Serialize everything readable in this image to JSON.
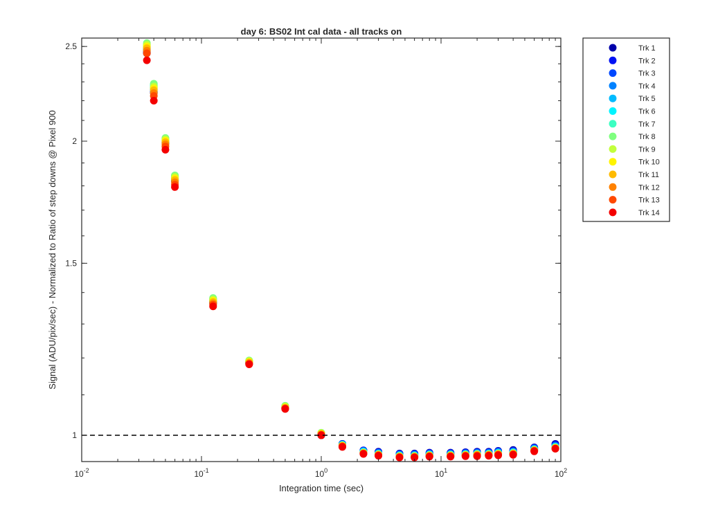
{
  "chart_data": {
    "type": "scatter",
    "title": "day 6: BS02   Int cal data - all tracks on",
    "xlabel": "Integration time (sec)",
    "ylabel": "Signal (ADU/pix/sec) - Normalized to Ratio of step downs @ Pixel 900",
    "x_scale": "log",
    "y_scale": "log",
    "xlim": [
      0.01,
      100
    ],
    "ylim": [
      0.94,
      2.55
    ],
    "x_ticks": [
      {
        "value": 0.01,
        "base": "10",
        "exp": "-2"
      },
      {
        "value": 0.1,
        "base": "10",
        "exp": "-1"
      },
      {
        "value": 1,
        "base": "10",
        "exp": "0"
      },
      {
        "value": 10,
        "base": "10",
        "exp": "1"
      },
      {
        "value": 100,
        "base": "10",
        "exp": "2"
      }
    ],
    "y_ticks": [
      {
        "value": 1,
        "label": "1"
      },
      {
        "value": 1.5,
        "label": "1.5"
      },
      {
        "value": 2,
        "label": "2"
      },
      {
        "value": 2.5,
        "label": "2.5"
      }
    ],
    "reference_line": {
      "y": 1,
      "style": "dashed",
      "color": "#000000"
    },
    "grid": false,
    "legend_position": "outside-right",
    "x": [
      0.035,
      0.04,
      0.05,
      0.06,
      0.125,
      0.25,
      0.5,
      1,
      1.5,
      2.25,
      3,
      4.5,
      6,
      8,
      12,
      16,
      20,
      25,
      30,
      40,
      60,
      90
    ],
    "series": [
      {
        "name": "Trk 1",
        "color": "#0000AA",
        "values": [
          2.46,
          2.24,
          1.99,
          1.82,
          1.365,
          1.185,
          1.065,
          1.0,
          0.98,
          0.965,
          0.962,
          0.958,
          0.958,
          0.96,
          0.96,
          0.961,
          0.962,
          0.962,
          0.964,
          0.966,
          0.972,
          0.98
        ]
      },
      {
        "name": "Trk 2",
        "color": "#0012F4",
        "values": [
          2.465,
          2.245,
          1.993,
          1.823,
          1.367,
          1.186,
          1.066,
          1.001,
          0.98,
          0.965,
          0.961,
          0.957,
          0.957,
          0.959,
          0.959,
          0.96,
          0.961,
          0.961,
          0.963,
          0.964,
          0.971,
          0.978
        ]
      },
      {
        "name": "Trk 3",
        "color": "#0048FF",
        "values": [
          2.47,
          2.25,
          1.996,
          1.826,
          1.369,
          1.187,
          1.067,
          1.002,
          0.979,
          0.964,
          0.96,
          0.956,
          0.956,
          0.958,
          0.958,
          0.959,
          0.96,
          0.96,
          0.962,
          0.963,
          0.97,
          0.976
        ]
      },
      {
        "name": "Trk 4",
        "color": "#0082FF",
        "values": [
          2.48,
          2.26,
          2.0,
          1.83,
          1.372,
          1.188,
          1.068,
          1.003,
          0.979,
          0.963,
          0.959,
          0.955,
          0.955,
          0.957,
          0.957,
          0.958,
          0.959,
          0.959,
          0.961,
          0.962,
          0.969,
          0.975
        ]
      },
      {
        "name": "Trk 5",
        "color": "#00BBFF",
        "values": [
          2.49,
          2.27,
          2.005,
          1.835,
          1.375,
          1.19,
          1.069,
          1.004,
          0.978,
          0.962,
          0.958,
          0.954,
          0.954,
          0.956,
          0.956,
          0.957,
          0.958,
          0.958,
          0.96,
          0.961,
          0.968,
          0.974
        ]
      },
      {
        "name": "Trk 6",
        "color": "#00F4FF",
        "values": [
          2.5,
          2.28,
          2.01,
          1.84,
          1.378,
          1.191,
          1.07,
          1.005,
          0.978,
          0.962,
          0.957,
          0.953,
          0.953,
          0.955,
          0.955,
          0.956,
          0.957,
          0.957,
          0.959,
          0.96,
          0.967,
          0.973
        ]
      },
      {
        "name": "Trk 7",
        "color": "#3CFFC2",
        "values": [
          2.51,
          2.285,
          2.013,
          1.843,
          1.38,
          1.192,
          1.071,
          1.005,
          0.977,
          0.961,
          0.957,
          0.953,
          0.953,
          0.955,
          0.955,
          0.956,
          0.957,
          0.957,
          0.958,
          0.96,
          0.967,
          0.972
        ]
      },
      {
        "name": "Trk 8",
        "color": "#7FFF7F",
        "values": [
          2.52,
          2.29,
          2.015,
          1.845,
          1.382,
          1.193,
          1.072,
          1.006,
          0.977,
          0.96,
          0.956,
          0.952,
          0.952,
          0.954,
          0.954,
          0.955,
          0.956,
          0.956,
          0.958,
          0.959,
          0.966,
          0.972
        ]
      },
      {
        "name": "Trk 9",
        "color": "#C2FF3C",
        "values": [
          2.51,
          2.275,
          2.008,
          1.838,
          1.377,
          1.191,
          1.07,
          1.005,
          0.976,
          0.96,
          0.956,
          0.952,
          0.952,
          0.954,
          0.954,
          0.955,
          0.956,
          0.956,
          0.957,
          0.958,
          0.966,
          0.971
        ]
      },
      {
        "name": "Trk 10",
        "color": "#FFF400",
        "values": [
          2.5,
          2.265,
          2.002,
          1.832,
          1.373,
          1.189,
          1.068,
          1.004,
          0.976,
          0.959,
          0.955,
          0.951,
          0.951,
          0.953,
          0.953,
          0.954,
          0.955,
          0.955,
          0.957,
          0.958,
          0.965,
          0.971
        ]
      },
      {
        "name": "Trk 11",
        "color": "#FFBB00",
        "values": [
          2.49,
          2.255,
          1.995,
          1.825,
          1.369,
          1.187,
          1.067,
          1.003,
          0.975,
          0.959,
          0.955,
          0.951,
          0.951,
          0.953,
          0.953,
          0.954,
          0.955,
          0.955,
          0.956,
          0.957,
          0.965,
          0.97
        ]
      },
      {
        "name": "Trk 12",
        "color": "#FF8200",
        "values": [
          2.475,
          2.24,
          1.985,
          1.815,
          1.364,
          1.185,
          1.066,
          1.002,
          0.975,
          0.958,
          0.954,
          0.95,
          0.95,
          0.952,
          0.952,
          0.953,
          0.954,
          0.954,
          0.956,
          0.957,
          0.964,
          0.97
        ]
      },
      {
        "name": "Trk 13",
        "color": "#FF4800",
        "values": [
          2.46,
          2.225,
          1.975,
          1.805,
          1.36,
          1.183,
          1.065,
          1.001,
          0.974,
          0.958,
          0.954,
          0.95,
          0.95,
          0.952,
          0.952,
          0.953,
          0.953,
          0.954,
          0.955,
          0.956,
          0.964,
          0.969
        ]
      },
      {
        "name": "Trk 14",
        "color": "#F40000",
        "values": [
          2.42,
          2.2,
          1.96,
          1.795,
          1.355,
          1.182,
          1.064,
          1.0,
          0.973,
          0.957,
          0.953,
          0.949,
          0.949,
          0.951,
          0.951,
          0.952,
          0.952,
          0.953,
          0.954,
          0.955,
          0.963,
          0.969
        ]
      }
    ]
  }
}
